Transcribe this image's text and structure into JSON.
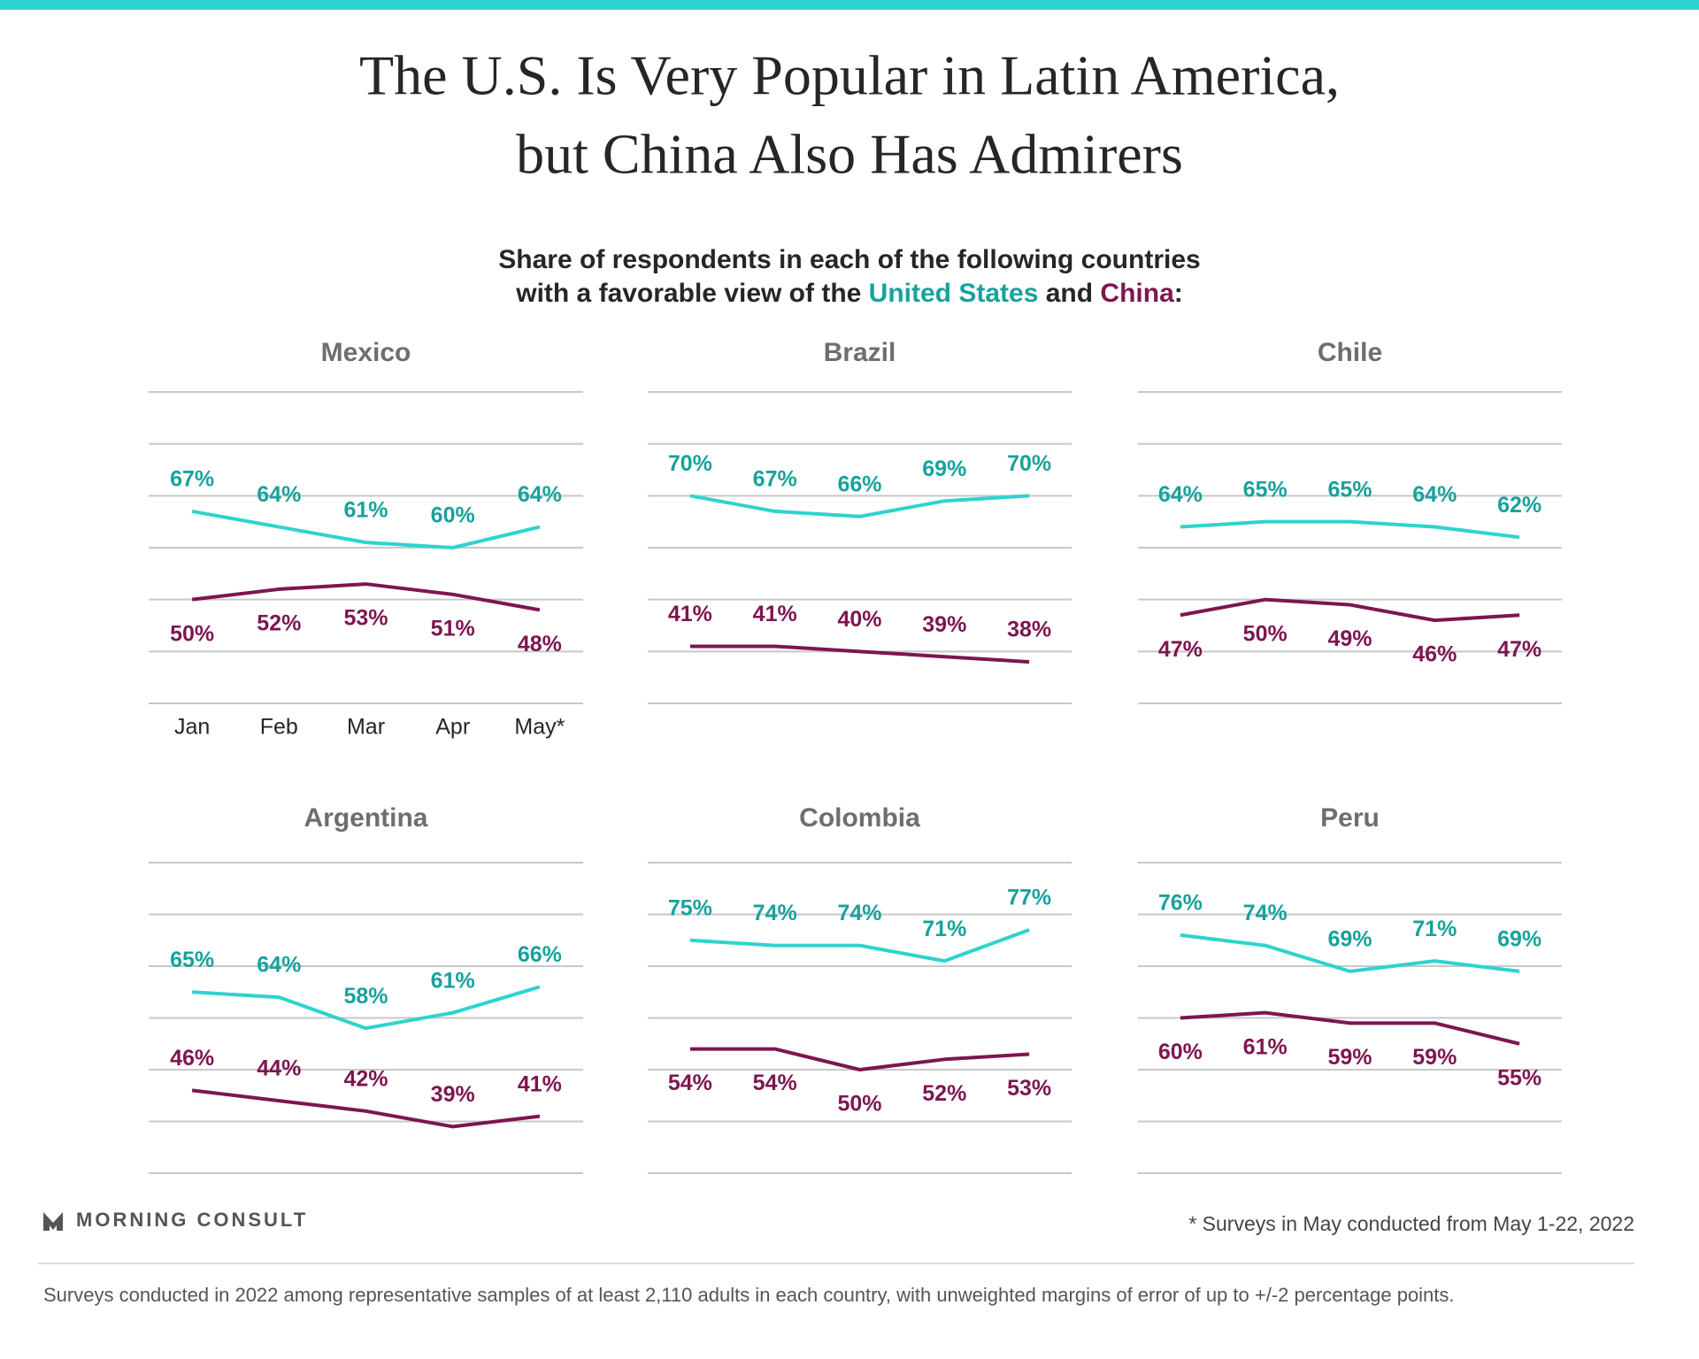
{
  "title": [
    "The U.S. Is Very Popular in Latin America,",
    "but China Also Has Admirers"
  ],
  "subtitle": {
    "line1": "Share of respondents in each of the following countries",
    "line2": "with a favorable view of the",
    "and": "and",
    "end": ":"
  },
  "chart_data": [
    {
      "type": "line",
      "title": "Mexico",
      "categories": [
        "Jan",
        "Feb",
        "Mar",
        "Apr",
        "May*"
      ],
      "series": [
        {
          "name": "United States",
          "color": "#2ed3ce",
          "label_color": "#17a29c",
          "label_position": "above",
          "values": [
            67,
            64,
            61,
            60,
            64
          ],
          "value_labels": [
            "67%",
            "64%",
            "61%",
            "60%",
            "64%"
          ]
        },
        {
          "name": "China",
          "color": "#7d1650",
          "label_color": "#7d1650",
          "label_position": "below",
          "values": [
            50,
            52,
            53,
            51,
            48
          ],
          "value_labels": [
            "50%",
            "52%",
            "53%",
            "51%",
            "48%"
          ]
        }
      ],
      "ylim": [
        30,
        90
      ],
      "yticks": [
        30,
        40,
        50,
        60,
        70,
        80,
        90
      ],
      "grid": true
    },
    {
      "type": "line",
      "title": "Brazil",
      "categories": [
        null,
        null,
        null,
        null,
        null
      ],
      "series": [
        {
          "name": "United States",
          "color": "#2ed3ce",
          "label_color": "#17a29c",
          "label_position": "above",
          "values": [
            70,
            67,
            66,
            69,
            70
          ],
          "value_labels": [
            "70%",
            "67%",
            "66%",
            "69%",
            "70%"
          ]
        },
        {
          "name": "China",
          "color": "#7d1650",
          "label_color": "#7d1650",
          "label_position": "above",
          "values": [
            41,
            41,
            40,
            39,
            38
          ],
          "value_labels": [
            "41%",
            "41%",
            "40%",
            "39%",
            "38%"
          ]
        }
      ],
      "ylim": [
        30,
        90
      ],
      "yticks": [
        30,
        40,
        50,
        60,
        70,
        80,
        90
      ],
      "grid": true
    },
    {
      "type": "line",
      "title": "Chile",
      "categories": [
        null,
        null,
        null,
        null,
        null
      ],
      "series": [
        {
          "name": "United States",
          "color": "#2ed3ce",
          "label_color": "#17a29c",
          "label_position": "above",
          "values": [
            64,
            65,
            65,
            64,
            62
          ],
          "value_labels": [
            "64%",
            "65%",
            "65%",
            "64%",
            "62%"
          ]
        },
        {
          "name": "China",
          "color": "#7d1650",
          "label_color": "#7d1650",
          "label_position": "below",
          "values": [
            47,
            50,
            49,
            46,
            47
          ],
          "value_labels": [
            "47%",
            "50%",
            "49%",
            "46%",
            "47%"
          ]
        }
      ],
      "ylim": [
        30,
        90
      ],
      "yticks": [
        30,
        40,
        50,
        60,
        70,
        80,
        90
      ],
      "grid": true
    },
    {
      "type": "line",
      "title": "Argentina",
      "categories": [
        null,
        null,
        null,
        null,
        null
      ],
      "series": [
        {
          "name": "United States",
          "color": "#2ed3ce",
          "label_color": "#17a29c",
          "label_position": "above",
          "values": [
            65,
            64,
            58,
            61,
            66
          ],
          "value_labels": [
            "65%",
            "64%",
            "58%",
            "61%",
            "66%"
          ]
        },
        {
          "name": "China",
          "color": "#7d1650",
          "label_color": "#7d1650",
          "label_position": "above",
          "values": [
            46,
            44,
            42,
            39,
            41
          ],
          "value_labels": [
            "46%",
            "44%",
            "42%",
            "39%",
            "41%"
          ]
        }
      ],
      "ylim": [
        30,
        90
      ],
      "yticks": [
        30,
        40,
        50,
        60,
        70,
        80,
        90
      ],
      "grid": true
    },
    {
      "type": "line",
      "title": "Colombia",
      "categories": [
        null,
        null,
        null,
        null,
        null
      ],
      "series": [
        {
          "name": "United States",
          "color": "#2ed3ce",
          "label_color": "#17a29c",
          "label_position": "above",
          "values": [
            75,
            74,
            74,
            71,
            77
          ],
          "value_labels": [
            "75%",
            "74%",
            "74%",
            "71%",
            "77%"
          ]
        },
        {
          "name": "China",
          "color": "#7d1650",
          "label_color": "#7d1650",
          "label_position": "below",
          "values": [
            54,
            54,
            50,
            52,
            53
          ],
          "value_labels": [
            "54%",
            "54%",
            "50%",
            "52%",
            "53%"
          ]
        }
      ],
      "ylim": [
        30,
        90
      ],
      "yticks": [
        30,
        40,
        50,
        60,
        70,
        80,
        90
      ],
      "grid": true
    },
    {
      "type": "line",
      "title": "Peru",
      "categories": [
        null,
        null,
        null,
        null,
        null
      ],
      "series": [
        {
          "name": "United States",
          "color": "#2ed3ce",
          "label_color": "#17a29c",
          "label_position": "above",
          "values": [
            76,
            74,
            69,
            71,
            69
          ],
          "value_labels": [
            "76%",
            "74%",
            "69%",
            "71%",
            "69%"
          ]
        },
        {
          "name": "China",
          "color": "#7d1650",
          "label_color": "#7d1650",
          "label_position": "below",
          "values": [
            60,
            61,
            59,
            59,
            55
          ],
          "value_labels": [
            "60%",
            "61%",
            "59%",
            "59%",
            "55%"
          ]
        }
      ],
      "ylim": [
        30,
        90
      ],
      "yticks": [
        30,
        40,
        50,
        60,
        70,
        80,
        90
      ],
      "grid": true
    }
  ],
  "logo": "MORNING CONSULT",
  "footnote": "* Surveys in May conducted from May 1-22, 2022",
  "source": "Surveys conducted in 2022 among representative samples of at least 2,110 adults in each country, with unweighted margins of error of up to +/-2 percentage points."
}
